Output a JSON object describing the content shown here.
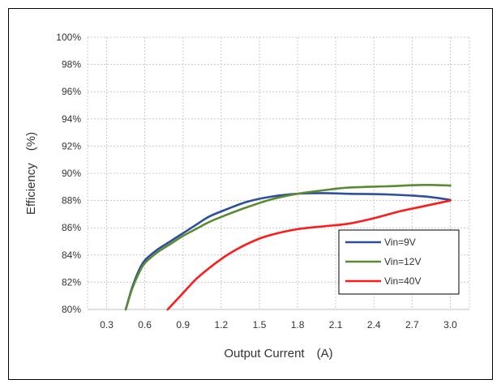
{
  "chart_data": {
    "type": "line",
    "title": "",
    "xlabel": "Output Current　(A)",
    "ylabel": "Efficiency　(%)",
    "xlim": [
      0.15,
      3.15
    ],
    "ylim": [
      80,
      100
    ],
    "x_ticks": [
      "0.3",
      "0.6",
      "0.9",
      "1.2",
      "1.5",
      "1.8",
      "2.1",
      "2.4",
      "2.7",
      "3.0"
    ],
    "y_ticks": [
      "80%",
      "82%",
      "84%",
      "86%",
      "88%",
      "90%",
      "92%",
      "94%",
      "96%",
      "98%",
      "100%"
    ],
    "grid": true,
    "legend_position": "bottom-right",
    "series": [
      {
        "name": "Vin=9V",
        "color": "#2E4E9E",
        "x": [
          0.45,
          0.5,
          0.55,
          0.6,
          0.7,
          0.8,
          0.9,
          1.0,
          1.1,
          1.2,
          1.4,
          1.6,
          1.8,
          2.0,
          2.2,
          2.5,
          2.8,
          3.0
        ],
        "y": [
          80.0,
          81.6,
          82.8,
          83.6,
          84.4,
          85.0,
          85.6,
          86.2,
          86.8,
          87.2,
          87.9,
          88.3,
          88.5,
          88.55,
          88.5,
          88.45,
          88.3,
          88.05
        ]
      },
      {
        "name": "Vin=12V",
        "color": "#5A8A32",
        "x": [
          0.45,
          0.5,
          0.55,
          0.6,
          0.7,
          0.8,
          0.9,
          1.0,
          1.1,
          1.2,
          1.4,
          1.6,
          1.8,
          2.0,
          2.2,
          2.5,
          2.8,
          3.0
        ],
        "y": [
          80.0,
          81.5,
          82.6,
          83.4,
          84.2,
          84.8,
          85.4,
          85.9,
          86.4,
          86.8,
          87.5,
          88.1,
          88.5,
          88.75,
          88.95,
          89.05,
          89.15,
          89.1
        ]
      },
      {
        "name": "Vin=40V",
        "color": "#FF1A1A",
        "x": [
          0.78,
          0.9,
          1.0,
          1.1,
          1.2,
          1.3,
          1.4,
          1.5,
          1.6,
          1.8,
          2.0,
          2.2,
          2.4,
          2.6,
          2.8,
          3.0
        ],
        "y": [
          80.0,
          81.2,
          82.2,
          83.0,
          83.7,
          84.3,
          84.8,
          85.2,
          85.5,
          85.9,
          86.1,
          86.3,
          86.7,
          87.2,
          87.6,
          88.0
        ]
      }
    ]
  }
}
